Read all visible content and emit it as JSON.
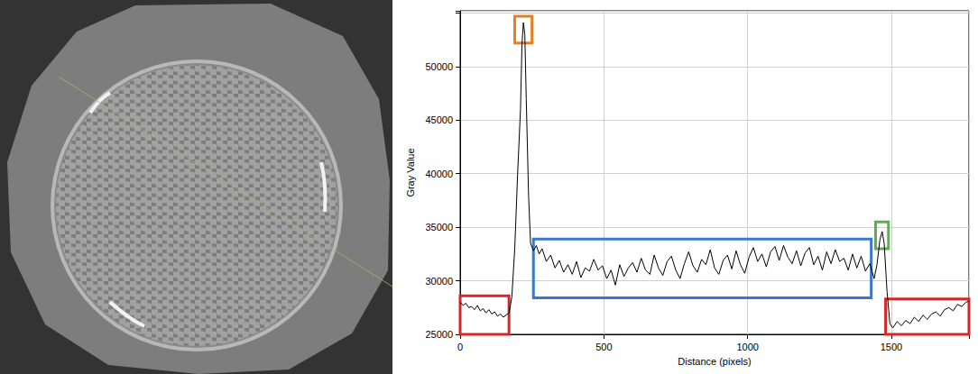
{
  "chart_data": {
    "type": "line",
    "xlabel": "Distance (pixels)",
    "ylabel": "Gray Value",
    "color": "#000000",
    "x": [
      0,
      10,
      20,
      30,
      40,
      50,
      60,
      70,
      80,
      90,
      100,
      110,
      120,
      130,
      140,
      150,
      160,
      170,
      180,
      190,
      200,
      210,
      215,
      220,
      225,
      230,
      238,
      245,
      255,
      265,
      275,
      285,
      300,
      315,
      330,
      345,
      360,
      375,
      390,
      405,
      420,
      435,
      450,
      465,
      480,
      495,
      510,
      525,
      540,
      555,
      570,
      585,
      600,
      615,
      630,
      645,
      660,
      675,
      690,
      705,
      720,
      735,
      750,
      765,
      780,
      795,
      810,
      825,
      840,
      855,
      870,
      885,
      900,
      915,
      930,
      945,
      960,
      975,
      990,
      1005,
      1020,
      1035,
      1050,
      1065,
      1080,
      1095,
      1110,
      1125,
      1140,
      1155,
      1170,
      1185,
      1200,
      1215,
      1230,
      1245,
      1260,
      1275,
      1290,
      1305,
      1320,
      1335,
      1350,
      1365,
      1380,
      1395,
      1410,
      1425,
      1440,
      1450,
      1460,
      1468,
      1475,
      1485,
      1495,
      1505,
      1520,
      1535,
      1550,
      1565,
      1580,
      1595,
      1610,
      1625,
      1640,
      1655,
      1670,
      1685,
      1700,
      1715,
      1730,
      1745,
      1760,
      1770
    ],
    "values": [
      28000,
      27700,
      27900,
      27500,
      27600,
      27300,
      27700,
      27200,
      27400,
      27000,
      27300,
      26900,
      27100,
      26700,
      26900,
      26600,
      26800,
      27000,
      28500,
      33000,
      40000,
      46000,
      52000,
      54100,
      53000,
      47000,
      38000,
      33500,
      32800,
      33300,
      32500,
      33000,
      31800,
      32400,
      31200,
      31900,
      30800,
      31500,
      30600,
      31800,
      30300,
      31200,
      30900,
      32000,
      31000,
      31400,
      30200,
      31000,
      29600,
      31500,
      30400,
      31200,
      31700,
      30800,
      32100,
      31000,
      30600,
      32400,
      31200,
      30500,
      31800,
      32300,
      31000,
      30200,
      31600,
      32700,
      31400,
      30800,
      32000,
      31500,
      32900,
      31200,
      30600,
      31900,
      32400,
      31100,
      32800,
      31500,
      30700,
      32200,
      33100,
      31800,
      32500,
      31300,
      32700,
      33200,
      31900,
      33300,
      32200,
      31600,
      32800,
      31400,
      32600,
      33100,
      31500,
      32300,
      31000,
      32700,
      31600,
      32900,
      31800,
      32100,
      31000,
      32500,
      31200,
      32300,
      30900,
      31600,
      30200,
      31500,
      33800,
      34600,
      33500,
      29000,
      26000,
      25600,
      26200,
      25800,
      26300,
      26000,
      26600,
      26200,
      26800,
      26400,
      26900,
      27100,
      26700,
      27300,
      27500,
      27200,
      27800,
      27600,
      28000,
      28100
    ],
    "xlim": [
      0,
      1770
    ],
    "xticks": [
      0,
      500,
      1000,
      1500
    ],
    "ylim": [
      25000,
      55200
    ],
    "yticks": [
      25000,
      30000,
      35000,
      40000,
      45000,
      50000
    ],
    "grid": true,
    "boxes": [
      {
        "x": [
          0,
          170
        ],
        "y": [
          25000,
          28600
        ],
        "color": "#d62728"
      },
      {
        "x": [
          190,
          250
        ],
        "y": [
          52200,
          54700
        ],
        "color": "#e67e22"
      },
      {
        "x": [
          255,
          1430
        ],
        "y": [
          28400,
          33900
        ],
        "color": "#3a78c9"
      },
      {
        "x": [
          1445,
          1490
        ],
        "y": [
          33000,
          35500
        ],
        "color": "#5ab04a"
      },
      {
        "x": [
          1480,
          1770
        ],
        "y": [
          25000,
          28300
        ],
        "color": "#d62728"
      }
    ]
  }
}
